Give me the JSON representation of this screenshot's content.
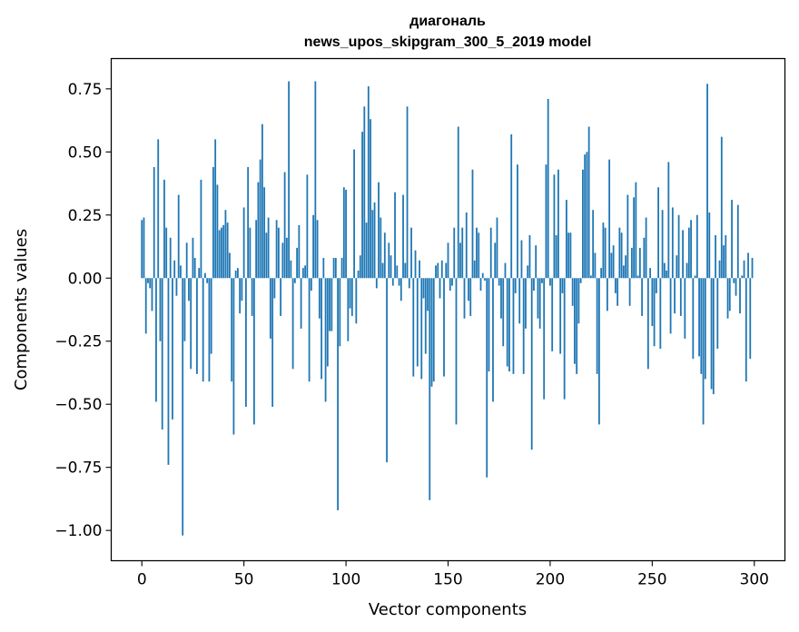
{
  "chart_data": {
    "type": "bar",
    "title": "диагональ",
    "subtitle": "news_upos_skipgram_300_5_2019 model",
    "xlabel": "Vector components",
    "ylabel": "Components values",
    "xlim": [
      -15,
      315
    ],
    "ylim": [
      -1.12,
      0.87
    ],
    "x_ticks": [
      0,
      50,
      100,
      150,
      200,
      250,
      300
    ],
    "x_tick_labels": [
      "0",
      "50",
      "100",
      "150",
      "200",
      "250",
      "300"
    ],
    "y_ticks": [
      -1.0,
      -0.75,
      -0.5,
      -0.25,
      0.0,
      0.25,
      0.5,
      0.75
    ],
    "y_tick_labels": [
      "−1.00",
      "−0.75",
      "−0.50",
      "−0.25",
      "0.00",
      "0.25",
      "0.50",
      "0.75"
    ],
    "bar_color": "#1f77b4",
    "grid": false,
    "x": [
      0,
      1,
      2,
      3,
      4,
      5,
      6,
      7,
      8,
      9,
      10,
      11,
      12,
      13,
      14,
      15,
      16,
      17,
      18,
      19,
      20,
      21,
      22,
      23,
      24,
      25,
      26,
      27,
      28,
      29,
      30,
      31,
      32,
      33,
      34,
      35,
      36,
      37,
      38,
      39,
      40,
      41,
      42,
      43,
      44,
      45,
      46,
      47,
      48,
      49,
      50,
      51,
      52,
      53,
      54,
      55,
      56,
      57,
      58,
      59,
      60,
      61,
      62,
      63,
      64,
      65,
      66,
      67,
      68,
      69,
      70,
      71,
      72,
      73,
      74,
      75,
      76,
      77,
      78,
      79,
      80,
      81,
      82,
      83,
      84,
      85,
      86,
      87,
      88,
      89,
      90,
      91,
      92,
      93,
      94,
      95,
      96,
      97,
      98,
      99,
      100,
      101,
      102,
      103,
      104,
      105,
      106,
      107,
      108,
      109,
      110,
      111,
      112,
      113,
      114,
      115,
      116,
      117,
      118,
      119,
      120,
      121,
      122,
      123,
      124,
      125,
      126,
      127,
      128,
      129,
      130,
      131,
      132,
      133,
      134,
      135,
      136,
      137,
      138,
      139,
      140,
      141,
      142,
      143,
      144,
      145,
      146,
      147,
      148,
      149,
      150,
      151,
      152,
      153,
      154,
      155,
      156,
      157,
      158,
      159,
      160,
      161,
      162,
      163,
      164,
      165,
      166,
      167,
      168,
      169,
      170,
      171,
      172,
      173,
      174,
      175,
      176,
      177,
      178,
      179,
      180,
      181,
      182,
      183,
      184,
      185,
      186,
      187,
      188,
      189,
      190,
      191,
      192,
      193,
      194,
      195,
      196,
      197,
      198,
      199,
      200,
      201,
      202,
      203,
      204,
      205,
      206,
      207,
      208,
      209,
      210,
      211,
      212,
      213,
      214,
      215,
      216,
      217,
      218,
      219,
      220,
      221,
      222,
      223,
      224,
      225,
      226,
      227,
      228,
      229,
      230,
      231,
      232,
      233,
      234,
      235,
      236,
      237,
      238,
      239,
      240,
      241,
      242,
      243,
      244,
      245,
      246,
      247,
      248,
      249,
      250,
      251,
      252,
      253,
      254,
      255,
      256,
      257,
      258,
      259,
      260,
      261,
      262,
      263,
      264,
      265,
      266,
      267,
      268,
      269,
      270,
      271,
      272,
      273,
      274,
      275,
      276,
      277,
      278,
      279,
      280,
      281,
      282,
      283,
      284,
      285,
      286,
      287,
      288,
      289,
      290,
      291,
      292,
      293,
      294,
      295,
      296,
      297,
      298,
      299
    ],
    "values": [
      0.23,
      0.24,
      -0.22,
      -0.02,
      -0.04,
      -0.13,
      0.44,
      -0.49,
      0.55,
      -0.25,
      -0.6,
      0.39,
      0.2,
      -0.74,
      0.16,
      -0.56,
      0.07,
      -0.07,
      0.33,
      0.05,
      -1.02,
      -0.25,
      0.14,
      -0.09,
      -0.36,
      0.16,
      0.08,
      -0.38,
      0.04,
      0.39,
      -0.41,
      0.02,
      -0.02,
      -0.41,
      -0.3,
      0.44,
      0.55,
      0.37,
      0.19,
      0.2,
      0.21,
      0.27,
      0.22,
      0.1,
      -0.41,
      -0.62,
      0.03,
      0.04,
      -0.14,
      -0.09,
      0.28,
      -0.51,
      0.44,
      0.2,
      -0.15,
      -0.58,
      0.23,
      0.38,
      0.47,
      0.61,
      0.36,
      0.18,
      0.24,
      -0.24,
      -0.51,
      -0.08,
      0.23,
      0.2,
      -0.15,
      0.14,
      0.42,
      0.16,
      0.78,
      0.07,
      -0.36,
      -0.02,
      0.12,
      0.21,
      -0.2,
      0.04,
      0.05,
      0.41,
      -0.41,
      -0.05,
      0.25,
      0.78,
      0.23,
      -0.16,
      -0.4,
      0.08,
      -0.49,
      -0.35,
      -0.21,
      -0.21,
      0.08,
      0.08,
      -0.92,
      -0.27,
      0.08,
      0.36,
      0.35,
      -0.25,
      -0.12,
      -0.15,
      0.51,
      -0.18,
      0.03,
      0.09,
      0.58,
      0.68,
      0.22,
      0.76,
      0.63,
      0.27,
      0.3,
      -0.04,
      0.38,
      0.24,
      0.06,
      0.18,
      -0.73,
      0.14,
      0.09,
      -0.03,
      0.34,
      0.05,
      -0.03,
      -0.09,
      0.33,
      0.06,
      0.68,
      -0.04,
      0.2,
      -0.39,
      0.11,
      -0.35,
      0.07,
      -0.4,
      -0.08,
      -0.3,
      -0.13,
      -0.88,
      -0.43,
      -0.41,
      0.05,
      0.06,
      -0.08,
      0.07,
      -0.39,
      0.06,
      0.14,
      -0.05,
      -0.03,
      0.2,
      -0.58,
      0.6,
      0.14,
      0.2,
      -0.16,
      0.26,
      -0.09,
      -0.15,
      0.43,
      0.07,
      0.2,
      0.18,
      -0.05,
      0.02,
      -0.01,
      -0.79,
      -0.37,
      0.2,
      -0.49,
      0.14,
      0.24,
      -0.03,
      -0.16,
      -0.27,
      0.06,
      -0.35,
      -0.37,
      0.57,
      -0.38,
      -0.06,
      0.45,
      -0.18,
      0.15,
      -0.38,
      -0.2,
      0.05,
      0.17,
      -0.68,
      -0.05,
      0.13,
      -0.16,
      -0.2,
      -0.02,
      -0.48,
      0.45,
      0.71,
      -0.03,
      -0.29,
      0.41,
      0.17,
      0.43,
      -0.3,
      -0.06,
      -0.48,
      0.31,
      0.18,
      0.18,
      -0.11,
      -0.34,
      -0.38,
      -0.18,
      -0.02,
      0.43,
      0.49,
      0.5,
      0.6,
      0.01,
      0.27,
      0.1,
      -0.38,
      -0.58,
      0.04,
      0.22,
      0.2,
      -0.13,
      0.47,
      0.1,
      0.13,
      -0.06,
      -0.11,
      0.2,
      0.18,
      0.05,
      0.09,
      0.33,
      -0.11,
      0.12,
      0.32,
      0.38,
      0.01,
      0.12,
      -0.15,
      0.16,
      0.24,
      -0.36,
      0.04,
      -0.19,
      -0.27,
      -0.06,
      0.36,
      -0.28,
      0.27,
      0.06,
      0.03,
      0.46,
      -0.22,
      0.28,
      -0.14,
      0.09,
      0.25,
      -0.15,
      0.19,
      -0.24,
      0.06,
      0.2,
      0.23,
      -0.32,
      0.01,
      0.25,
      -0.31,
      -0.38,
      -0.58,
      -0.4,
      0.77,
      0.26,
      -0.44,
      -0.46,
      0.17,
      -0.28,
      0.07,
      0.56,
      0.13,
      0.17,
      -0.16,
      -0.13,
      0.31,
      -0.02,
      -0.07,
      0.29,
      -0.14,
      0.01,
      0.07,
      -0.41,
      0.1,
      -0.32,
      0.08
    ]
  }
}
